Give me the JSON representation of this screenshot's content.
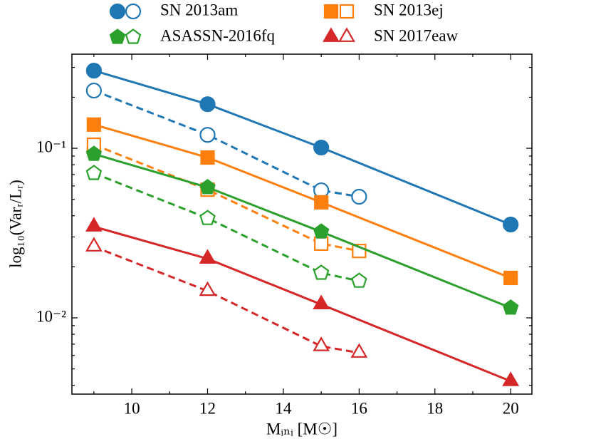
{
  "chart_data": {
    "type": "line",
    "xlabel": "Mᵢₙᵢ [M☉]",
    "ylabel": "log₁₀(Varᵣ/Lᵣ)",
    "xlim": [
      8.42,
      20.56
    ],
    "xticks": [
      10,
      12,
      14,
      16,
      18,
      20
    ],
    "xminor": [
      9,
      11,
      13,
      15,
      17,
      19
    ],
    "ylim": [
      0.00355,
      0.359
    ],
    "yscale": "log",
    "yticks": [
      {
        "value": 0.01,
        "label": "10⁻²"
      },
      {
        "value": 0.1,
        "label": "10⁻¹"
      }
    ],
    "yminor": [
      0.004,
      0.005,
      0.006,
      0.007,
      0.008,
      0.009,
      0.02,
      0.03,
      0.04,
      0.05,
      0.06,
      0.07,
      0.08,
      0.09,
      0.2,
      0.3
    ],
    "legend": "top",
    "series": [
      {
        "name": "SN 2013am",
        "color": "#1f77b4",
        "marker": "circle",
        "lines": [
          {
            "style": "solid",
            "filled": true,
            "x": [
              9,
              12,
              15,
              20
            ],
            "values": [
              0.287,
              0.182,
              0.101,
              0.0355
            ]
          },
          {
            "style": "dashed",
            "filled": false,
            "x": [
              9,
              12,
              15,
              16
            ],
            "values": [
              0.219,
              0.12,
              0.0565,
              0.0518
            ]
          }
        ]
      },
      {
        "name": "SN 2013ej",
        "color": "#ff7f0e",
        "marker": "square",
        "lines": [
          {
            "style": "solid",
            "filled": true,
            "x": [
              9,
              12,
              15,
              20
            ],
            "values": [
              0.138,
              0.0882,
              0.048,
              0.0172
            ]
          },
          {
            "style": "dashed",
            "filled": false,
            "x": [
              9,
              12,
              15,
              16
            ],
            "values": [
              0.105,
              0.057,
              0.0274,
              0.0248
            ]
          }
        ]
      },
      {
        "name": "ASASSN-2016fq",
        "color": "#2ca02c",
        "marker": "pentagon",
        "lines": [
          {
            "style": "solid",
            "filled": true,
            "x": [
              9,
              12,
              15,
              20
            ],
            "values": [
              0.0925,
              0.0588,
              0.0322,
              0.01146
            ]
          },
          {
            "style": "dashed",
            "filled": false,
            "x": [
              9,
              12,
              15,
              16
            ],
            "values": [
              0.0713,
              0.0387,
              0.0184,
              0.0165
            ]
          }
        ]
      },
      {
        "name": "SN 2017eaw",
        "color": "#d62728",
        "marker": "triangle",
        "lines": [
          {
            "style": "solid",
            "filled": true,
            "x": [
              9,
              12,
              15,
              20
            ],
            "values": [
              0.0345,
              0.0223,
              0.012,
              0.00423
            ]
          },
          {
            "style": "dashed",
            "filled": false,
            "x": [
              9,
              12,
              15,
              16
            ],
            "values": [
              0.0263,
              0.0144,
              0.0068,
              0.00622
            ]
          }
        ]
      }
    ]
  }
}
